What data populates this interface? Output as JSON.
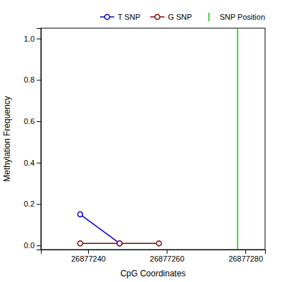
{
  "chart_data": {
    "type": "line",
    "xlabel": "CpG Coordinates",
    "ylabel": "Methylation Frequency",
    "series": [
      {
        "name": "T SNP",
        "color": "#0000CD",
        "marker": "circle",
        "x": [
          26877238,
          26877248
        ],
        "values": [
          0.15,
          0.01
        ]
      },
      {
        "name": "G SNP",
        "color": "#8B0000",
        "marker": "circle",
        "x": [
          26877238,
          26877248,
          26877258
        ],
        "values": [
          0.01,
          0.01,
          0.01
        ]
      },
      {
        "name": "SNP Position",
        "type": "vline",
        "color": "#00CC00",
        "x": [
          26877278
        ]
      }
    ],
    "xlim": [
      26877228,
      26877285
    ],
    "ylim": [
      -0.02,
      1.05
    ],
    "xticks": [
      26877240,
      26877260,
      26877280
    ],
    "yticks": [
      {
        "value": 0,
        "label": "0.0"
      },
      0.2,
      0.4,
      0.6,
      0.8,
      {
        "value": 1,
        "label": "1.0"
      }
    ],
    "grid": false,
    "legend": "upper right"
  }
}
